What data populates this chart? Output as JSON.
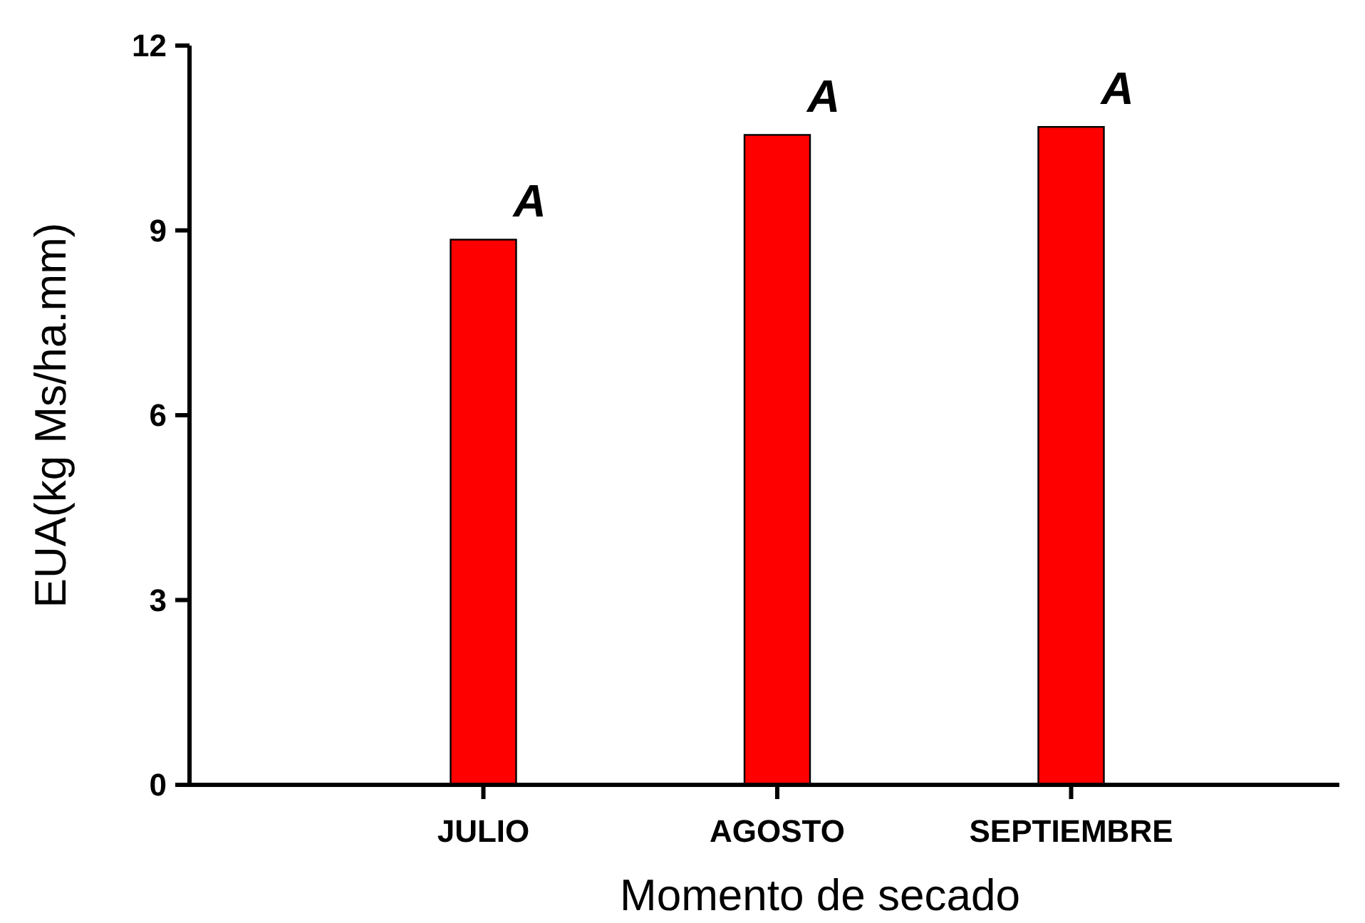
{
  "chart_data": {
    "type": "bar",
    "xlabel": "Momento de secado",
    "ylabel": "EUA(kg Ms/ha.mm)",
    "categories": [
      "JULIO",
      "AGOSTO",
      "SEPTIEMBRE"
    ],
    "values": [
      8.85,
      10.55,
      10.68
    ],
    "color": "#ff0000",
    "ylim": [
      0,
      12
    ],
    "yticks": [
      0,
      3,
      6,
      9,
      12
    ],
    "grid": false,
    "annotations": [
      {
        "text": "A",
        "x": "JULIO",
        "y": 8.85
      },
      {
        "text": "A",
        "x": "AGOSTO",
        "y": 10.55
      },
      {
        "text": "A",
        "x": "SEPTIEMBRE",
        "y": 10.68
      }
    ]
  }
}
